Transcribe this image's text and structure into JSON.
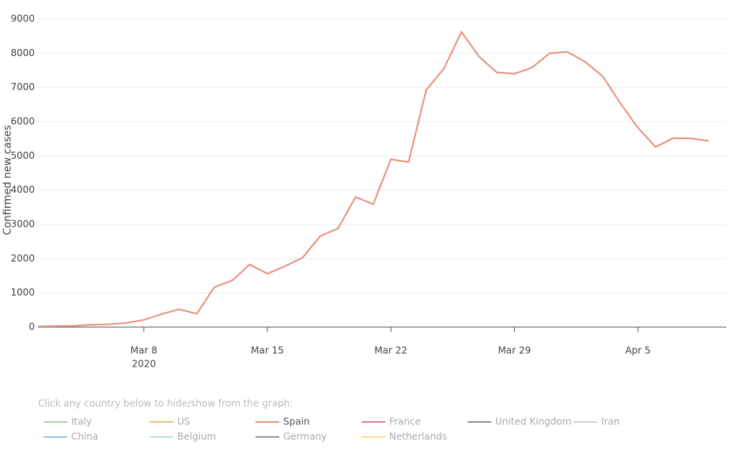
{
  "chart_data": {
    "type": "line",
    "y_label": "Confirmed new cases",
    "x": [
      "2020-03-02",
      "2020-03-03",
      "2020-03-04",
      "2020-03-05",
      "2020-03-06",
      "2020-03-07",
      "2020-03-08",
      "2020-03-09",
      "2020-03-10",
      "2020-03-11",
      "2020-03-12",
      "2020-03-13",
      "2020-03-14",
      "2020-03-15",
      "2020-03-16",
      "2020-03-17",
      "2020-03-18",
      "2020-03-19",
      "2020-03-20",
      "2020-03-21",
      "2020-03-22",
      "2020-03-23",
      "2020-03-24",
      "2020-03-25",
      "2020-03-26",
      "2020-03-27",
      "2020-03-28",
      "2020-03-29",
      "2020-03-30",
      "2020-03-31",
      "2020-04-01",
      "2020-04-02",
      "2020-04-03",
      "2020-04-04",
      "2020-04-05",
      "2020-04-06",
      "2020-04-07",
      "2020-04-08",
      "2020-04-09"
    ],
    "series": [
      {
        "name": "Spain",
        "color": "#e8907a",
        "values": [
          20,
          30,
          35,
          70,
          80,
          120,
          210,
          380,
          520,
          390,
          1170,
          1360,
          1830,
          1560,
          1780,
          2030,
          2660,
          2880,
          3800,
          3590,
          4900,
          4820,
          6920,
          7550,
          8620,
          7900,
          7440,
          7400,
          7580,
          8000,
          8040,
          7750,
          7330,
          6540,
          5820,
          5260,
          5520,
          5510,
          5440
        ]
      }
    ],
    "xlim": [
      "2020-03-02",
      "2020-04-10"
    ],
    "xticks": [
      {
        "value": "2020-03-08",
        "label": "Mar 8"
      },
      {
        "value": "2020-03-15",
        "label": "Mar 15"
      },
      {
        "value": "2020-03-22",
        "label": "Mar 22"
      },
      {
        "value": "2020-03-29",
        "label": "Mar 29"
      },
      {
        "value": "2020-04-05",
        "label": "Apr 5"
      }
    ],
    "x_year_label": "2020",
    "ylim": [
      0,
      9000
    ],
    "yticks": [
      0,
      1000,
      2000,
      3000,
      4000,
      5000,
      6000,
      7000,
      8000,
      9000
    ],
    "grid": true
  },
  "legend": {
    "hint": "Click any country below to hide/show from the graph:",
    "items": [
      {
        "name": "Italy",
        "color": "#b5cf9f",
        "active": false
      },
      {
        "name": "US",
        "color": "#f8b87c",
        "active": false
      },
      {
        "name": "Spain",
        "color": "#e8907a",
        "active": true
      },
      {
        "name": "France",
        "color": "#e07a9e",
        "active": false
      },
      {
        "name": "United Kingdom",
        "color": "#9a8a98",
        "active": false
      },
      {
        "name": "Iran",
        "color": "#cfcfcf",
        "active": false
      },
      {
        "name": "China",
        "color": "#9ac3ec",
        "active": false
      },
      {
        "name": "Belgium",
        "color": "#bfe0dc",
        "active": false
      },
      {
        "name": "Germany",
        "color": "#8f9a98",
        "active": false
      },
      {
        "name": "Netherlands",
        "color": "#f8e08a",
        "active": false
      }
    ]
  }
}
